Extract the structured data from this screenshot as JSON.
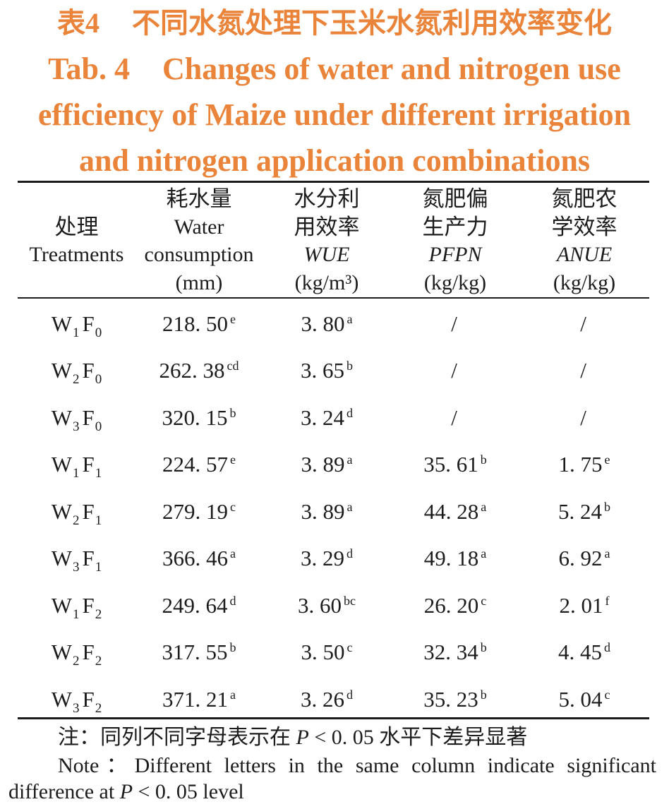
{
  "title": {
    "label_zh": "表4",
    "text_zh": "不同水氮处理下玉米水氮利用效率变化",
    "label_en": "Tab. 4",
    "lines_en": [
      "Changes of water and nitrogen use",
      "efficiency of Maize under different irrigation",
      "and nitrogen application combinations"
    ]
  },
  "colors": {
    "title": "#e9843a",
    "text": "#1c1c1c",
    "rule": "#1c1c1c",
    "background": "#ffffff"
  },
  "table": {
    "header": {
      "treatment": {
        "zh": "处理",
        "en": "Treatments"
      },
      "water_consumption": {
        "zh": "耗水量",
        "en_lines": [
          "Water",
          "consumption"
        ],
        "unit": "(mm)"
      },
      "wue": {
        "zh_lines": [
          "水分利",
          "用效率"
        ],
        "abbr": "WUE",
        "unit": "(kg/m³)"
      },
      "pfpn": {
        "zh_lines": [
          "氮肥偏",
          "生产力"
        ],
        "abbr": "PFPN",
        "unit": "(kg/kg)"
      },
      "anue": {
        "zh_lines": [
          "氮肥农",
          "学效率"
        ],
        "abbr": "ANUE",
        "unit": "(kg/kg)"
      }
    },
    "rows": [
      {
        "treatment": {
          "w": "W",
          "w_sub": "1",
          "f": "F",
          "f_sub": "0"
        },
        "water_consumption": {
          "value": "218. 50",
          "sig": "e"
        },
        "wue": {
          "value": "3. 80",
          "sig": "a"
        },
        "pfpn": {
          "value": "/",
          "sig": ""
        },
        "anue": {
          "value": "/",
          "sig": ""
        }
      },
      {
        "treatment": {
          "w": "W",
          "w_sub": "2",
          "f": "F",
          "f_sub": "0"
        },
        "water_consumption": {
          "value": "262. 38",
          "sig": "cd"
        },
        "wue": {
          "value": "3. 65",
          "sig": "b"
        },
        "pfpn": {
          "value": "/",
          "sig": ""
        },
        "anue": {
          "value": "/",
          "sig": ""
        }
      },
      {
        "treatment": {
          "w": "W",
          "w_sub": "3",
          "f": "F",
          "f_sub": "0"
        },
        "water_consumption": {
          "value": "320. 15",
          "sig": "b"
        },
        "wue": {
          "value": "3. 24",
          "sig": "d"
        },
        "pfpn": {
          "value": "/",
          "sig": ""
        },
        "anue": {
          "value": "/",
          "sig": ""
        }
      },
      {
        "treatment": {
          "w": "W",
          "w_sub": "1",
          "f": "F",
          "f_sub": "1"
        },
        "water_consumption": {
          "value": "224. 57",
          "sig": "e"
        },
        "wue": {
          "value": "3. 89",
          "sig": "a"
        },
        "pfpn": {
          "value": "35. 61",
          "sig": "b"
        },
        "anue": {
          "value": "1. 75",
          "sig": "e"
        }
      },
      {
        "treatment": {
          "w": "W",
          "w_sub": "2",
          "f": "F",
          "f_sub": "1"
        },
        "water_consumption": {
          "value": "279. 19",
          "sig": "c"
        },
        "wue": {
          "value": "3. 89",
          "sig": "a"
        },
        "pfpn": {
          "value": "44. 28",
          "sig": "a"
        },
        "anue": {
          "value": "5. 24",
          "sig": "b"
        }
      },
      {
        "treatment": {
          "w": "W",
          "w_sub": "3",
          "f": "F",
          "f_sub": "1"
        },
        "water_consumption": {
          "value": "366. 46",
          "sig": "a"
        },
        "wue": {
          "value": "3. 29",
          "sig": "d"
        },
        "pfpn": {
          "value": "49. 18",
          "sig": "a"
        },
        "anue": {
          "value": "6. 92",
          "sig": "a"
        }
      },
      {
        "treatment": {
          "w": "W",
          "w_sub": "1",
          "f": "F",
          "f_sub": "2"
        },
        "water_consumption": {
          "value": "249. 64",
          "sig": "d"
        },
        "wue": {
          "value": "3. 60",
          "sig": "bc"
        },
        "pfpn": {
          "value": "26. 20",
          "sig": "c"
        },
        "anue": {
          "value": "2. 01",
          "sig": "f"
        }
      },
      {
        "treatment": {
          "w": "W",
          "w_sub": "2",
          "f": "F",
          "f_sub": "2"
        },
        "water_consumption": {
          "value": "317. 55",
          "sig": "b"
        },
        "wue": {
          "value": "3. 50",
          "sig": "c"
        },
        "pfpn": {
          "value": "32. 34",
          "sig": "b"
        },
        "anue": {
          "value": "4. 45",
          "sig": "d"
        }
      },
      {
        "treatment": {
          "w": "W",
          "w_sub": "3",
          "f": "F",
          "f_sub": "2"
        },
        "water_consumption": {
          "value": "371. 21",
          "sig": "a"
        },
        "wue": {
          "value": "3. 26",
          "sig": "d"
        },
        "pfpn": {
          "value": "35. 23",
          "sig": "b"
        },
        "anue": {
          "value": "5. 04",
          "sig": "c"
        }
      }
    ]
  },
  "notes": {
    "zh": {
      "before": "注：同列不同字母表示在 ",
      "var": "P",
      "after": " < 0. 05 水平下差异显著"
    },
    "en": {
      "line1": "Note：Different letters in the same column indicate significant",
      "line2_before": "difference at ",
      "var": "P",
      "line2_after": " < 0. 05 level"
    }
  }
}
